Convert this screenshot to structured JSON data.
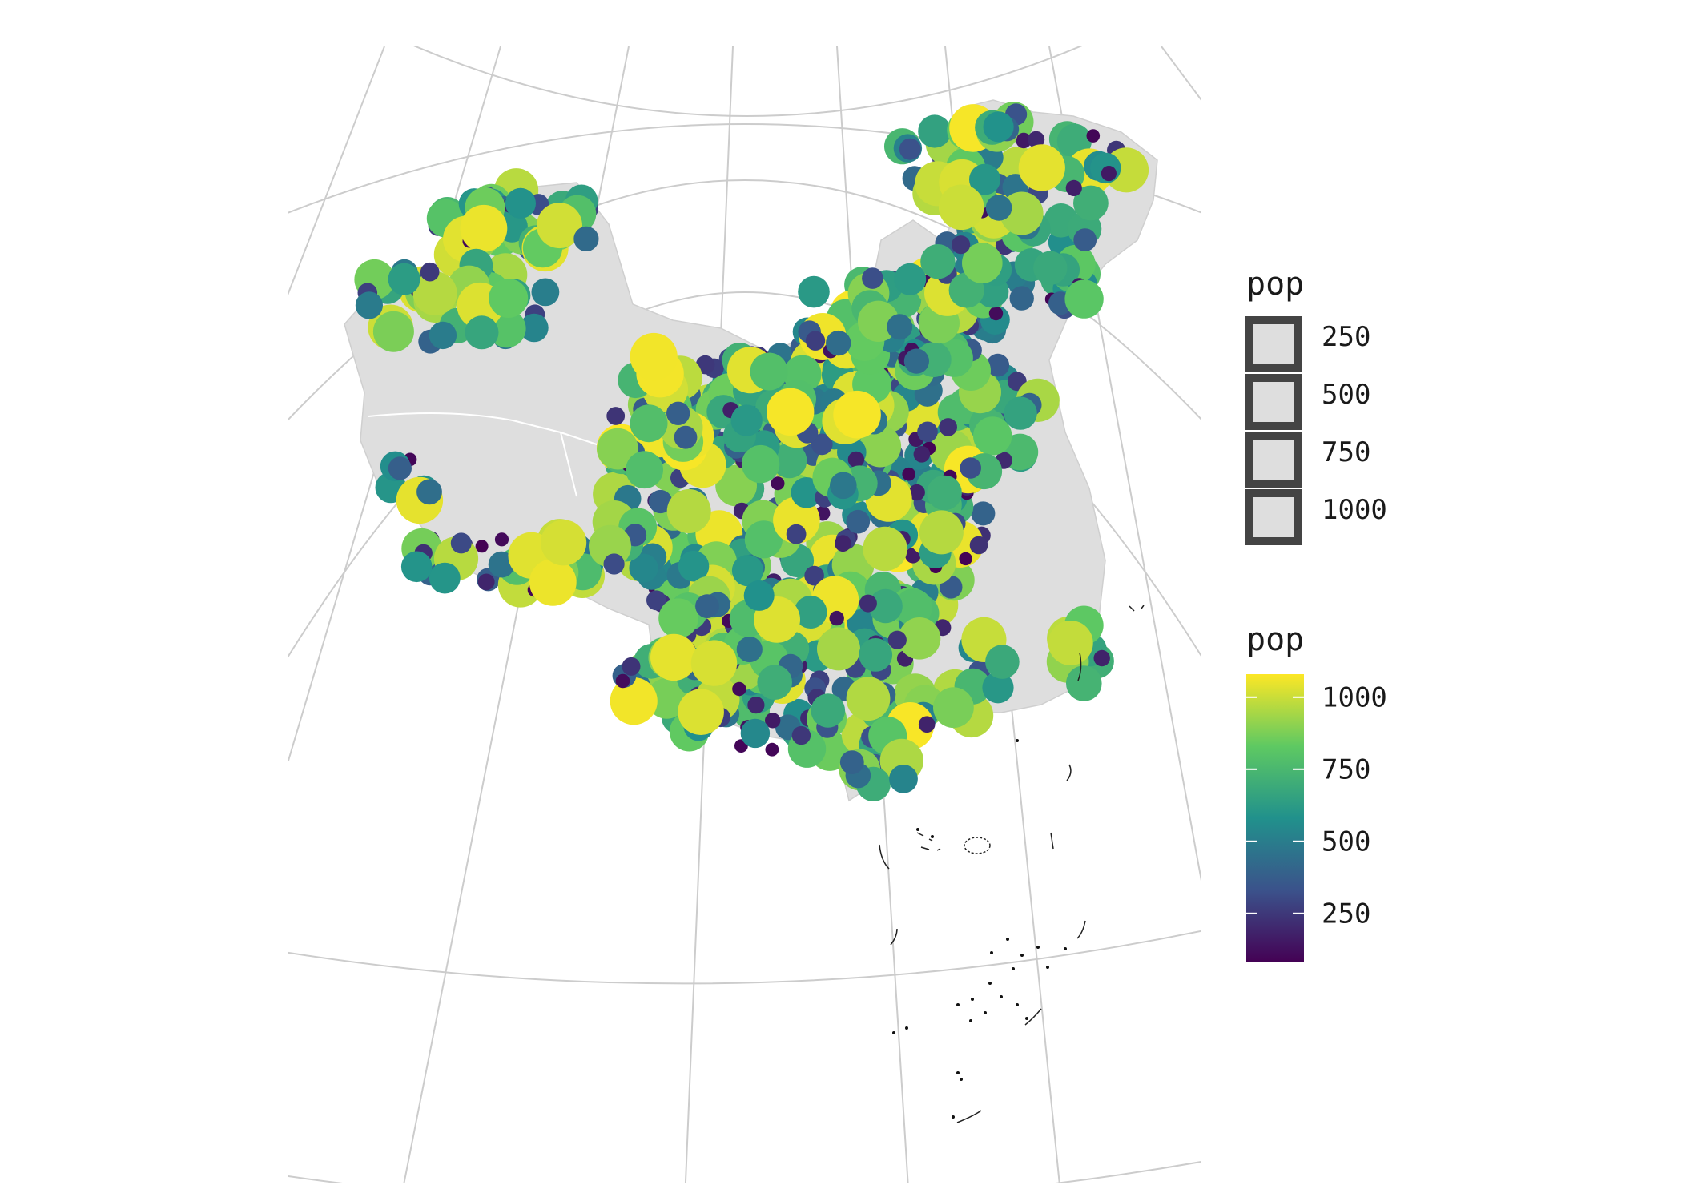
{
  "chart_data": {
    "type": "scatter",
    "title": "",
    "xlabel": "",
    "ylabel": "",
    "basemap": "China province polygons, conic projection, light grey fill",
    "grid": true,
    "size_legend": {
      "title": "pop",
      "breaks": [
        250,
        500,
        750,
        1000
      ],
      "labels": [
        "250",
        "500",
        "750",
        "1000"
      ]
    },
    "color_legend": {
      "title": "pop",
      "palette": "viridis",
      "colors": [
        "#440154",
        "#3b528b",
        "#21918c",
        "#5ec962",
        "#fde725"
      ],
      "range": [
        80,
        1080
      ],
      "breaks": [
        250,
        500,
        750,
        1000
      ],
      "labels": [
        "250",
        "500",
        "750",
        "1000"
      ]
    },
    "colors": {
      "land": "#dedede",
      "graticule": "#cccccc",
      "island_outline": "#222222"
    },
    "point_count_estimate": 900
  }
}
